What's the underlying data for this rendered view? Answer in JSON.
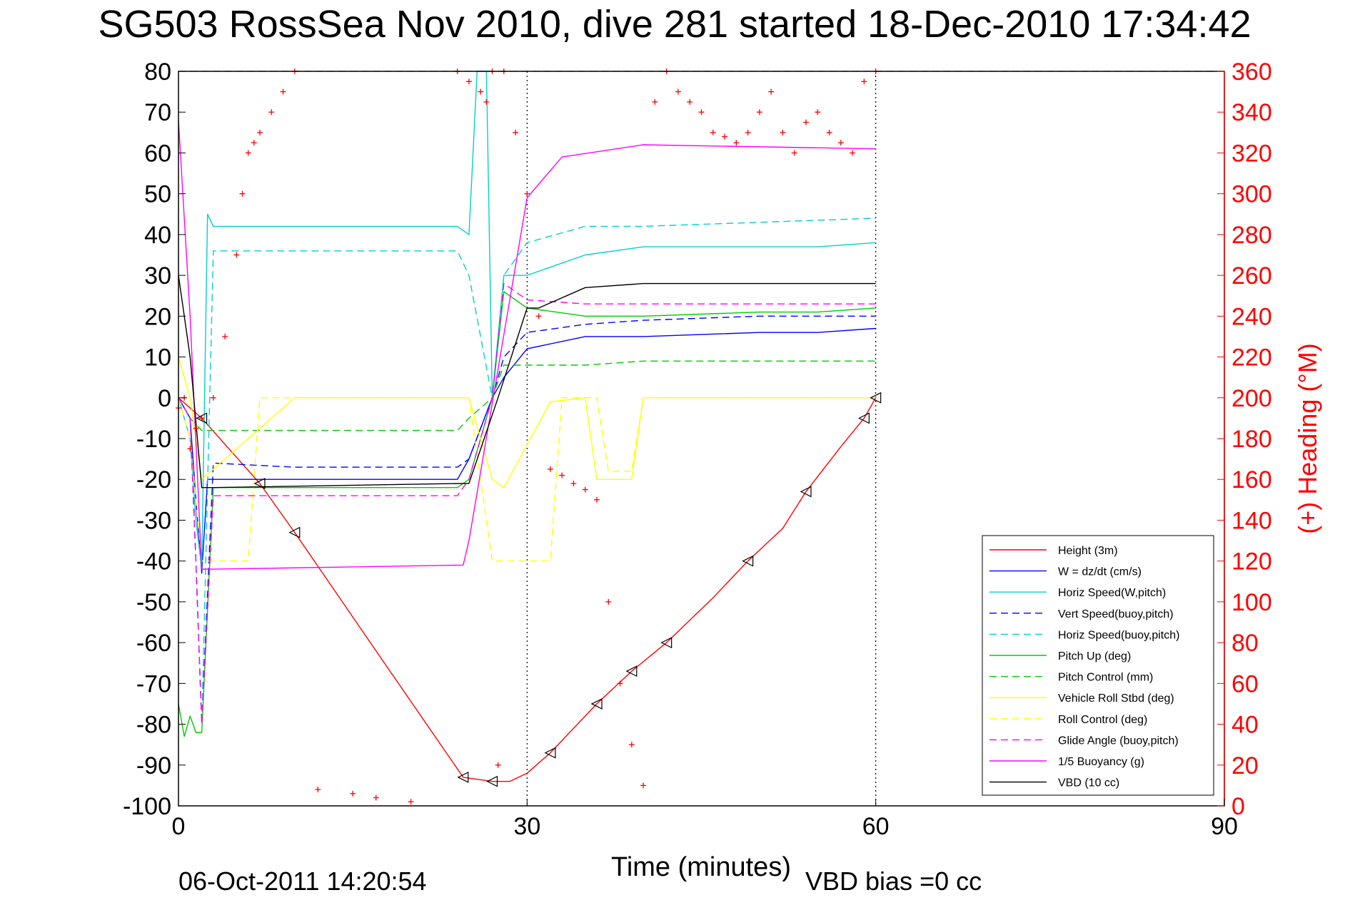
{
  "chart_data": {
    "type": "line",
    "title": "SG503 RossSea Nov 2010, dive 281 started 18-Dec-2010 17:34:42",
    "xlabel": "Time (minutes)",
    "ylabel_right": "(+) Heading (°M)",
    "footer_left": "06-Oct-2011 14:20:54",
    "footer_right": "VBD bias =0 cc",
    "xlim": [
      0,
      90
    ],
    "ylim_left": [
      -100,
      80
    ],
    "ylim_right": [
      0,
      360
    ],
    "xticks": [
      "0",
      "30",
      "60",
      "90"
    ],
    "yticks_left": [
      "80",
      "70",
      "60",
      "50",
      "40",
      "30",
      "20",
      "10",
      "0",
      "-10",
      "-20",
      "-30",
      "-40",
      "-50",
      "-60",
      "-70",
      "-80",
      "-90",
      "-100"
    ],
    "yticks_right": [
      "360",
      "340",
      "320",
      "300",
      "280",
      "260",
      "240",
      "220",
      "200",
      "180",
      "160",
      "140",
      "120",
      "100",
      "80",
      "60",
      "40",
      "20",
      "0"
    ],
    "legend_position": "lower-right",
    "series": [
      {
        "name": "Height (3m)",
        "color": "#ff0000",
        "style": "solid",
        "x": [
          0,
          2,
          7,
          10,
          17,
          24.5,
          27,
          28.5,
          30,
          32,
          36,
          39,
          42,
          46,
          49,
          52,
          54,
          57,
          59,
          60
        ],
        "y": [
          0,
          -5,
          -21,
          -33,
          -62,
          -93,
          -94,
          -94,
          -92,
          -87,
          -75,
          -67,
          -60,
          -49,
          -40,
          -32,
          -23,
          -12,
          -5,
          0
        ]
      },
      {
        "name": "W = dz/dt (cm/s)",
        "color": "#0000ff",
        "style": "solid",
        "x": [
          0,
          1,
          1.5,
          2,
          2.5,
          3,
          10,
          20,
          24,
          25,
          27,
          28,
          30,
          35,
          40,
          50,
          55,
          60
        ],
        "y": [
          0,
          -5,
          -25,
          -43,
          -20,
          -20,
          -20,
          -20,
          -20,
          -15,
          0,
          5,
          12,
          15,
          15,
          16,
          16,
          17
        ]
      },
      {
        "name": "Horiz Speed(W,pitch)",
        "color": "#00d0d0",
        "style": "solid",
        "x": [
          0,
          1,
          1.5,
          2,
          2.5,
          3,
          10,
          20,
          24,
          25,
          25.7,
          26.5,
          27,
          28,
          30,
          35,
          40,
          50,
          55,
          60
        ],
        "y": [
          0,
          -10,
          -30,
          -42,
          45,
          42,
          42,
          42,
          42,
          40,
          80,
          80,
          0,
          30,
          30,
          35,
          37,
          37,
          37,
          38
        ]
      },
      {
        "name": "Vert Speed(buoy,pitch)",
        "color": "#0000ff",
        "style": "dashed",
        "x": [
          0,
          1,
          1.5,
          2,
          3,
          10,
          20,
          24,
          25,
          27,
          28,
          30,
          35,
          40,
          50,
          60
        ],
        "y": [
          0,
          -5,
          -40,
          -80,
          -16,
          -17,
          -17,
          -17,
          -15,
          0,
          10,
          16,
          18,
          19,
          20,
          20
        ]
      },
      {
        "name": "Horiz Speed(buoy,pitch)",
        "color": "#00d0d0",
        "style": "dashed",
        "x": [
          0,
          1,
          1.5,
          2,
          3,
          10,
          20,
          24,
          25,
          27,
          28,
          30,
          35,
          40,
          50,
          60
        ],
        "y": [
          0,
          -5,
          -40,
          -80,
          36,
          36,
          36,
          36,
          30,
          0,
          30,
          38,
          42,
          42,
          43,
          44
        ]
      },
      {
        "name": "Pitch Up (deg)",
        "color": "#00cc00",
        "style": "solid",
        "x": [
          0,
          0.5,
          1,
          1.5,
          2,
          3,
          10,
          20,
          24,
          25,
          27,
          28,
          30,
          35,
          40,
          50,
          55,
          60
        ],
        "y": [
          -75,
          -83,
          -78,
          -82,
          -82,
          -22,
          -22,
          -22,
          -22,
          -20,
          0,
          26,
          22,
          20,
          20,
          21,
          21,
          22
        ]
      },
      {
        "name": "Pitch Control (mm)",
        "color": "#00cc00",
        "style": "dashed",
        "x": [
          0,
          1,
          2,
          3,
          24,
          25,
          27,
          28,
          30,
          35,
          40,
          50,
          60
        ],
        "y": [
          0,
          -5,
          -8,
          -8,
          -8,
          -5,
          0,
          8,
          8,
          8,
          9,
          9,
          9
        ]
      },
      {
        "name": "Vehicle Roll Stbd (deg)",
        "color": "#ffff00",
        "style": "solid",
        "x": [
          0,
          1,
          2,
          10,
          24,
          25,
          27,
          28,
          32,
          35,
          36,
          39,
          40,
          42,
          50,
          54,
          56,
          60
        ],
        "y": [
          10,
          0,
          -20,
          0,
          0,
          0,
          -20,
          -22,
          -1,
          0,
          -20,
          -20,
          0,
          0,
          0,
          0,
          0,
          0
        ]
      },
      {
        "name": "Roll Control (deg)",
        "color": "#ffff00",
        "style": "dashed",
        "x": [
          0,
          1,
          2,
          3,
          6,
          7,
          9,
          10,
          24,
          25,
          27,
          28,
          32,
          33,
          36,
          37,
          39,
          40,
          60
        ],
        "y": [
          0,
          -10,
          -40,
          -40,
          -40,
          0,
          0,
          0,
          0,
          0,
          -40,
          -40,
          -40,
          0,
          0,
          -18,
          -18,
          0,
          0
        ]
      },
      {
        "name": "Glide Angle (buoy,pitch)",
        "color": "#ff00ff",
        "style": "dashed",
        "x": [
          0,
          1,
          1.5,
          2,
          3,
          10,
          20,
          24,
          25,
          27,
          28,
          30,
          35,
          40,
          50,
          60
        ],
        "y": [
          0,
          -5,
          -40,
          -80,
          -24,
          -24,
          -24,
          -24,
          -20,
          0,
          28,
          24,
          23,
          23,
          23,
          23
        ]
      },
      {
        "name": "1/5 Buoyancy (g)",
        "color": "#ff00ff",
        "style": "solid",
        "x": [
          0,
          1,
          2,
          3,
          24.5,
          25,
          30,
          33,
          40,
          60
        ],
        "y": [
          68,
          20,
          -42,
          -42,
          -41,
          -35,
          49,
          59,
          62,
          61
        ]
      },
      {
        "name": "VBD (10 cc)",
        "color": "#000000",
        "style": "solid",
        "x": [
          0,
          1,
          2,
          3,
          24.5,
          25,
          27.5,
          30,
          31,
          35,
          40,
          60
        ],
        "y": [
          30,
          10,
          -22,
          -22,
          -21,
          -21,
          0,
          22,
          22,
          27,
          28,
          28
        ]
      }
    ],
    "heading_series": {
      "name": "(+) Heading (°M)",
      "color": "#ff0000",
      "marker": "+",
      "axis": "right",
      "x": [
        0,
        0.5,
        1,
        1.5,
        2,
        3,
        4,
        5,
        5.5,
        6,
        6.5,
        7,
        8,
        9,
        10,
        12,
        15,
        17,
        20,
        24,
        25,
        26,
        26.5,
        27,
        27.5,
        28,
        29,
        30,
        31,
        32,
        33,
        34,
        35,
        36,
        37,
        38,
        39,
        40,
        41,
        42,
        43,
        44,
        45,
        46,
        47,
        48,
        49,
        50,
        51,
        52,
        53,
        54,
        55,
        56,
        57,
        58,
        59,
        60
      ],
      "y": [
        195,
        200,
        175,
        185,
        190,
        200,
        230,
        270,
        300,
        320,
        325,
        330,
        340,
        350,
        360,
        8,
        6,
        4,
        2,
        360,
        355,
        350,
        345,
        360,
        20,
        360,
        330,
        300,
        240,
        165,
        162,
        158,
        155,
        150,
        100,
        60,
        30,
        10,
        345,
        360,
        350,
        345,
        340,
        330,
        328,
        325,
        330,
        340,
        350,
        330,
        320,
        335,
        340,
        330,
        325,
        320,
        355,
        360
      ]
    },
    "reference_lines": [
      {
        "axis": "right",
        "value": 360,
        "color": "#ff0000",
        "style": "dashed"
      },
      {
        "axis": "x",
        "value": 30,
        "color": "#000000",
        "style": "dotted"
      },
      {
        "axis": "x",
        "value": 60,
        "color": "#000000",
        "style": "dotted"
      }
    ],
    "turn_markers": {
      "x": [
        2,
        7,
        10,
        24.5,
        27,
        32,
        36,
        39,
        42,
        49,
        54,
        59,
        60
      ],
      "y": [
        -5,
        -21,
        -33,
        -93,
        -94,
        -87,
        -75,
        -67,
        -60,
        -40,
        -23,
        -5,
        0
      ]
    }
  }
}
